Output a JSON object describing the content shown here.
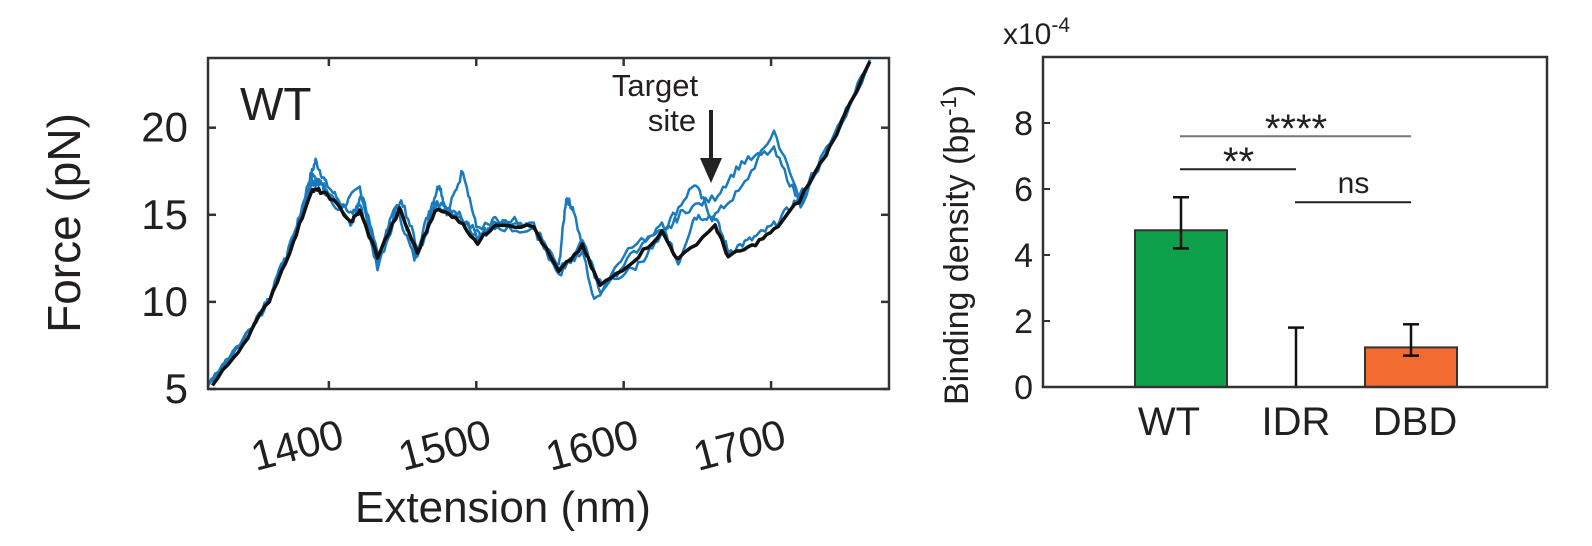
{
  "chart_data": [
    {
      "type": "line",
      "panel_label": "WT",
      "xlabel": "Extension (nm)",
      "ylabel": "Force (pN)",
      "xlim": [
        1318,
        1780
      ],
      "ylim": [
        5,
        24
      ],
      "xticks": [
        1400,
        1500,
        1600,
        1700
      ],
      "xtick_labels": [
        "1400",
        "1500",
        "1600",
        "1700"
      ],
      "yticks": [
        5,
        10,
        15,
        20
      ],
      "ytick_labels": [
        "5",
        "10",
        "15",
        "20"
      ],
      "annotation": {
        "line1": "Target",
        "line2": "site",
        "x": 1665,
        "y": 16.8
      },
      "colors": {
        "traces": "#1a7abf",
        "average": "#111111"
      },
      "series": [
        {
          "name": "trace-1",
          "color": "#1a7abf",
          "x": [
            1318,
            1342,
            1360,
            1376,
            1386,
            1391,
            1398,
            1410,
            1421,
            1433,
            1445,
            1458,
            1468,
            1475,
            1480,
            1491,
            1500,
            1520,
            1540,
            1556,
            1561,
            1566,
            1580,
            1600,
            1630,
            1648,
            1660,
            1680,
            1702,
            1720,
            1740,
            1767
          ],
          "y": [
            5.2,
            7.8,
            10.3,
            13.6,
            16.8,
            18.1,
            16.8,
            15.5,
            16.6,
            12.2,
            15.6,
            12.5,
            15.2,
            16.8,
            15.0,
            17.6,
            14.3,
            14.5,
            14.2,
            12.0,
            16.0,
            15.3,
            10.0,
            12.8,
            14.5,
            16.8,
            14.8,
            16.5,
            19.8,
            15.8,
            18.9,
            23.8
          ]
        },
        {
          "name": "trace-2",
          "color": "#1a7abf",
          "x": [
            1318,
            1342,
            1360,
            1376,
            1388,
            1393,
            1401,
            1415,
            1421,
            1433,
            1448,
            1460,
            1472,
            1486,
            1501,
            1513,
            1539,
            1556,
            1572,
            1584,
            1607,
            1626,
            1637,
            1648,
            1662,
            1671,
            1687,
            1702,
            1719,
            1740,
            1767
          ],
          "y": [
            5.4,
            7.9,
            10.4,
            13.7,
            16.8,
            16.9,
            16.3,
            15.0,
            15.6,
            12.0,
            15.6,
            12.4,
            15.7,
            15.2,
            13.6,
            14.8,
            14.5,
            11.4,
            13.5,
            10.6,
            12.8,
            14.4,
            12.2,
            14.9,
            14.9,
            12.9,
            13.6,
            14.4,
            16.0,
            19.1,
            23.9
          ]
        },
        {
          "name": "trace-3",
          "color": "#1a7abf",
          "x": [
            1318,
            1342,
            1360,
            1376,
            1389,
            1395,
            1402,
            1416,
            1422,
            1434,
            1449,
            1461,
            1473,
            1487,
            1502,
            1514,
            1540,
            1557,
            1573,
            1585,
            1608,
            1627,
            1640,
            1662,
            1680,
            1702,
            1720,
            1740,
            1767
          ],
          "y": [
            5.3,
            7.7,
            10.2,
            13.5,
            17.2,
            16.7,
            15.8,
            14.4,
            16.2,
            12.7,
            16.0,
            12.9,
            15.5,
            15.1,
            13.8,
            14.3,
            14.0,
            11.9,
            13.0,
            10.9,
            12.0,
            13.8,
            15.2,
            16.0,
            18.0,
            18.7,
            15.6,
            18.9,
            23.7
          ]
        },
        {
          "name": "average",
          "color": "#111111",
          "x": [
            1321,
            1342,
            1359.5,
            1376,
            1388,
            1393,
            1401,
            1415,
            1421,
            1433,
            1448,
            1460,
            1472,
            1486,
            1501,
            1513,
            1539,
            1556,
            1572,
            1584,
            1607,
            1626,
            1637,
            1662,
            1671,
            1687,
            1702,
            1719,
            1740,
            1767
          ],
          "y": [
            5.2,
            7.6,
            10.1,
            13.4,
            16.4,
            16.4,
            16.0,
            14.6,
            15.2,
            12.6,
            15.3,
            12.8,
            15.3,
            14.9,
            13.4,
            14.5,
            14.3,
            11.7,
            13.2,
            10.9,
            12.4,
            14.0,
            12.4,
            14.4,
            12.6,
            13.2,
            14.1,
            15.8,
            18.9,
            23.8
          ]
        }
      ]
    },
    {
      "type": "bar",
      "title": "",
      "xlabel": "",
      "ylabel": "Binding density (bp",
      "ylabel_sup": "-1",
      "ylabel_end": ")",
      "scale_label": "x10",
      "scale_exp": "-4",
      "categories": [
        "WT",
        "IDR",
        "DBD"
      ],
      "values": [
        4.75,
        0,
        1.2
      ],
      "error_low": [
        4.2,
        0,
        0.95
      ],
      "error_high": [
        5.75,
        1.8,
        1.9
      ],
      "colors": [
        "#0ea04b",
        "#0ea04b",
        "#f26b30"
      ],
      "ylim": [
        0,
        10
      ],
      "yticks": [
        0,
        2,
        4,
        6,
        8
      ],
      "ytick_labels": [
        "0",
        "2",
        "4",
        "6",
        "8"
      ],
      "significance": [
        {
          "from": 0,
          "to": 2,
          "y": 7.6,
          "label": "****"
        },
        {
          "from": 0,
          "to": 1,
          "y": 6.6,
          "label": "**"
        },
        {
          "from": 1,
          "to": 2,
          "y": 5.6,
          "label": "ns"
        }
      ]
    }
  ]
}
